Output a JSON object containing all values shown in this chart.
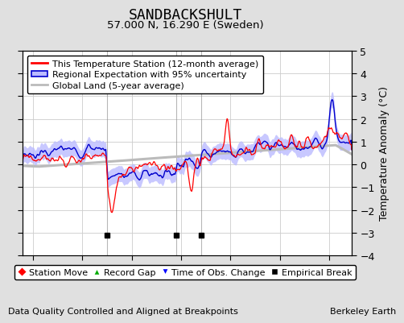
{
  "title": "SANDBACKSHULT",
  "subtitle": "57.000 N, 16.290 E (Sweden)",
  "ylabel": "Temperature Anomaly (°C)",
  "xlabel_footer": "Data Quality Controlled and Aligned at Breakpoints",
  "footer_right": "Berkeley Earth",
  "xlim": [
    1948,
    2014.5
  ],
  "ylim": [
    -4,
    5
  ],
  "yticks": [
    -4,
    -3,
    -2,
    -1,
    0,
    1,
    2,
    3,
    4,
    5
  ],
  "xticks": [
    1950,
    1960,
    1970,
    1980,
    1990,
    2000,
    2010
  ],
  "station_color": "#FF0000",
  "regional_color": "#0000CC",
  "regional_fill_color": "#BBBBFF",
  "global_color": "#BBBBBB",
  "background_color": "#E0E0E0",
  "plot_bg_color": "#FFFFFF",
  "break_years": [
    1965,
    1979,
    1984
  ],
  "break_y": -3.1,
  "grid_color": "#CCCCCC",
  "legend_labels": [
    "This Temperature Station (12-month average)",
    "Regional Expectation with 95% uncertainty",
    "Global Land (5-year average)"
  ],
  "marker_legend": [
    "Station Move",
    "Record Gap",
    "Time of Obs. Change",
    "Empirical Break"
  ],
  "marker_colors": [
    "#FF0000",
    "#00AA00",
    "#0000FF",
    "#000000"
  ],
  "marker_types": [
    "D",
    "^",
    "v",
    "s"
  ],
  "title_fontsize": 13,
  "subtitle_fontsize": 9.5,
  "tick_fontsize": 9,
  "legend_fontsize": 8,
  "footer_fontsize": 8
}
